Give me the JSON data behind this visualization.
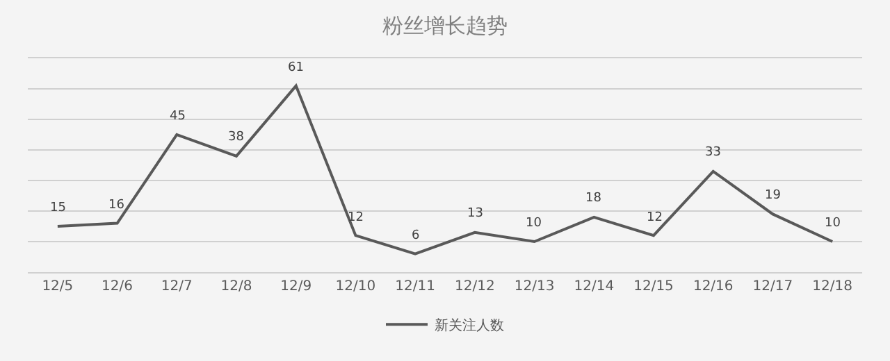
{
  "chart_data": {
    "type": "line",
    "title": "粉丝增长趋势",
    "categories": [
      "12/5",
      "12/6",
      "12/7",
      "12/8",
      "12/9",
      "12/10",
      "12/11",
      "12/12",
      "12/13",
      "12/14",
      "12/15",
      "12/16",
      "12/17",
      "12/18"
    ],
    "series": [
      {
        "name": "新关注人数",
        "color": "#595959",
        "values": [
          15,
          16,
          45,
          38,
          61,
          12,
          6,
          13,
          10,
          18,
          12,
          33,
          19,
          10
        ]
      }
    ],
    "ylim": [
      0,
      70
    ],
    "yticks": [
      {
        "value": 0,
        "label": null
      },
      {
        "value": 10,
        "label": null
      },
      {
        "value": 20,
        "label": null
      },
      {
        "value": 30,
        "label": null
      },
      {
        "value": 40,
        "label": null
      },
      {
        "value": 50,
        "label": null
      },
      {
        "value": 60,
        "label": null
      },
      {
        "value": 70,
        "label": null
      }
    ],
    "grid": "y",
    "legend": "bottom",
    "data_labels": true,
    "marker": "none",
    "line_style": "solid",
    "tick_labels": "x"
  }
}
